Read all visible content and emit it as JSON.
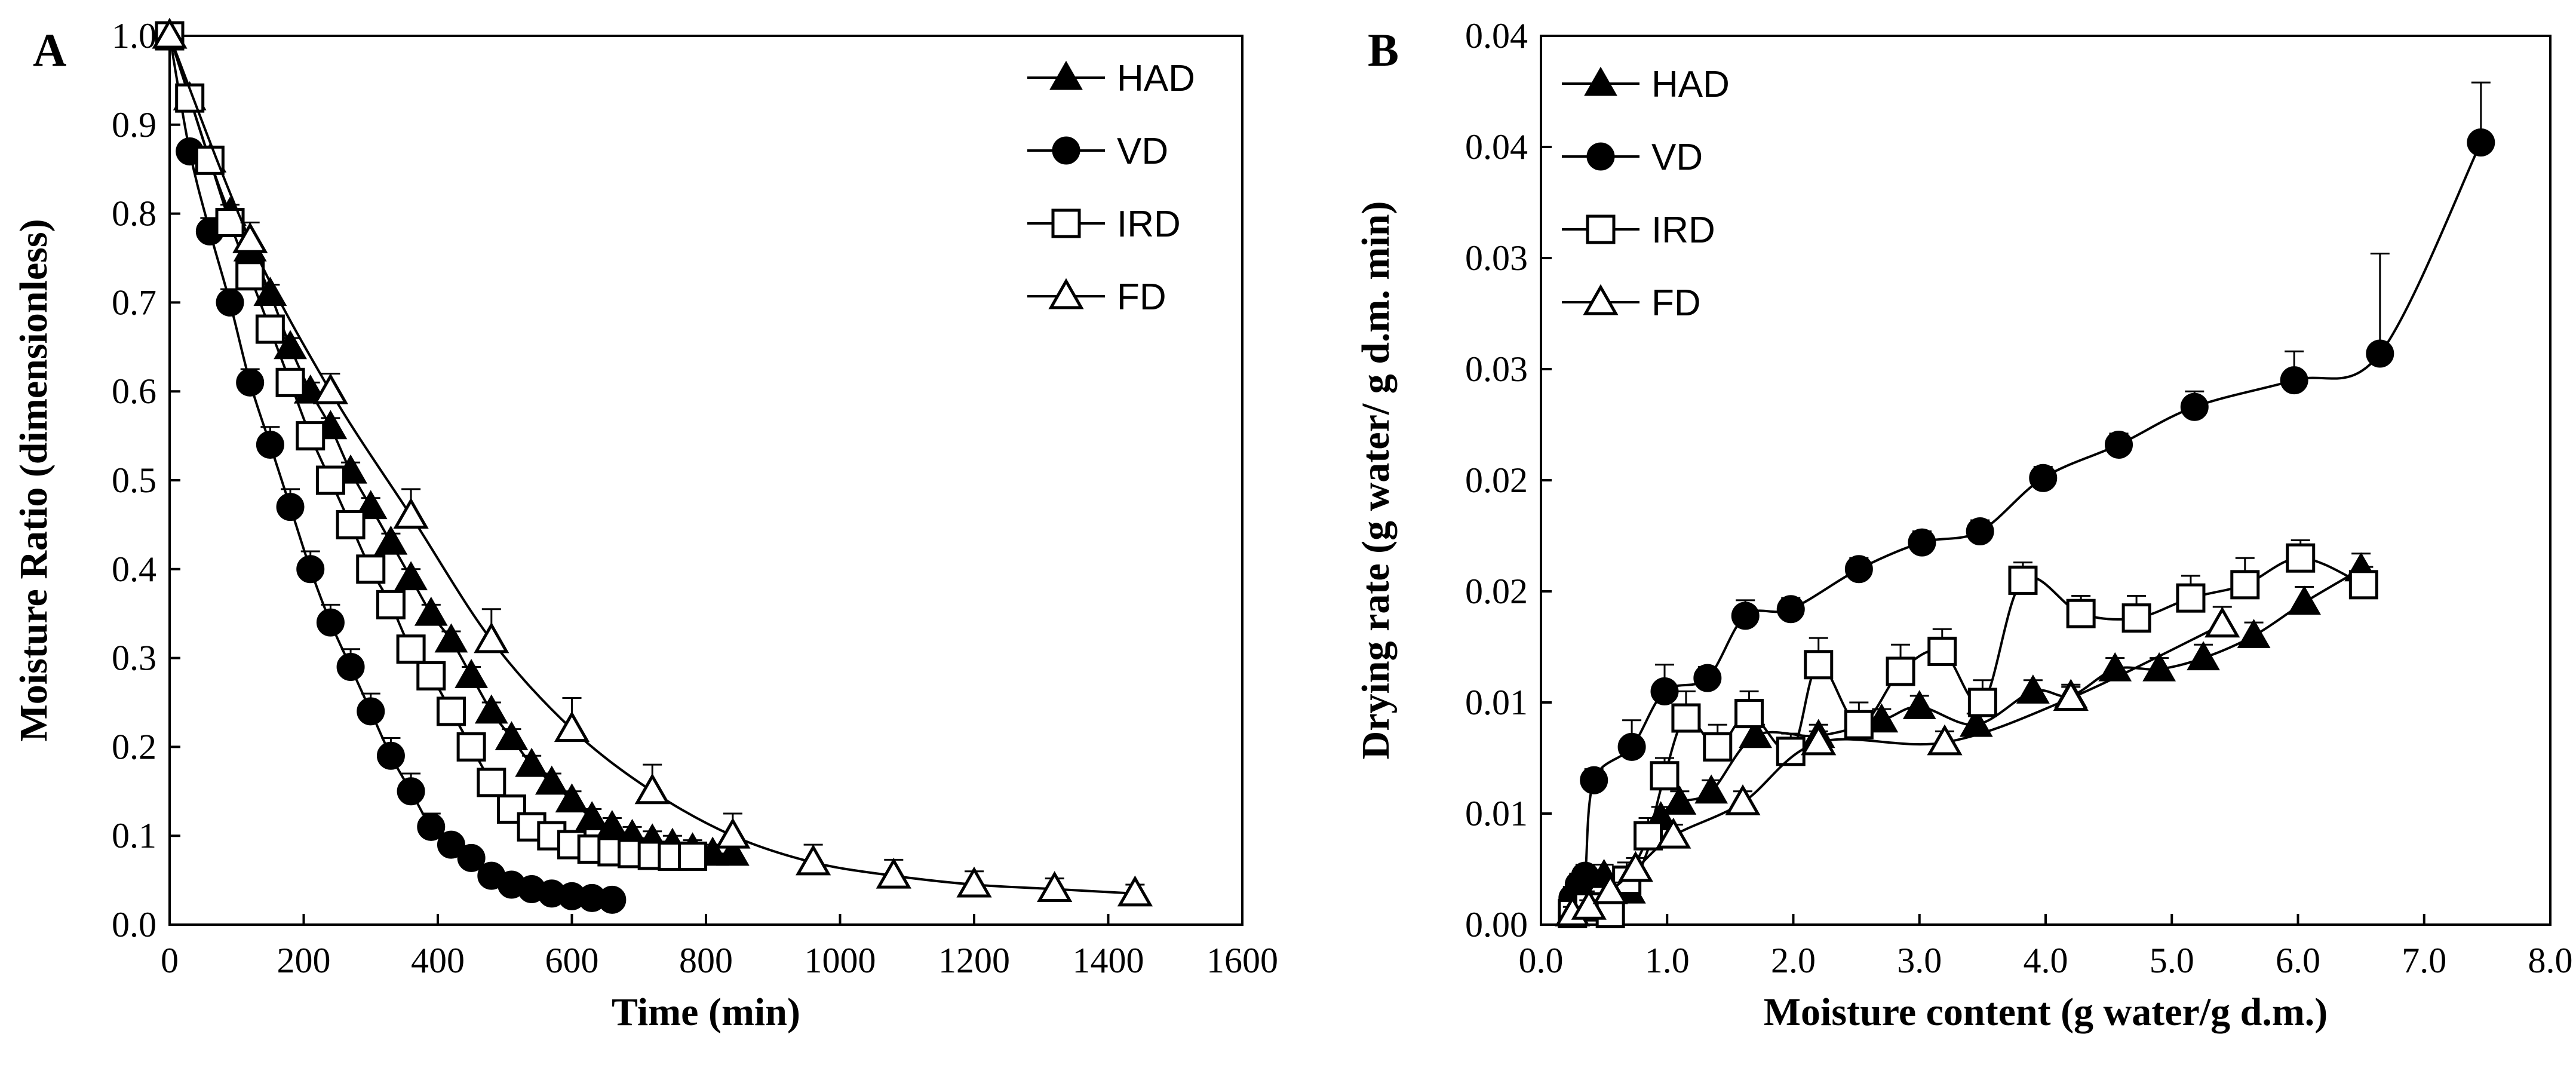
{
  "chart_data": [
    {
      "type": "line",
      "panel_label": "A",
      "xlabel": "Time (min)",
      "ylabel": "Moisture Ratio (dimensionless)",
      "xlim": [
        0,
        1600
      ],
      "ylim": [
        0,
        1.0
      ],
      "xticks": [
        "0",
        "200",
        "400",
        "600",
        "800",
        "1000",
        "1200",
        "1400",
        "1600"
      ],
      "yticks": [
        "0.0",
        "0.1",
        "0.2",
        "0.3",
        "0.4",
        "0.5",
        "0.6",
        "0.7",
        "0.8",
        "0.9",
        "1.0"
      ],
      "legend_position": "top-right",
      "series": [
        {
          "name": "HAD",
          "marker": "triangle-filled",
          "x": [
            0,
            30,
            60,
            90,
            120,
            150,
            180,
            210,
            240,
            270,
            300,
            330,
            360,
            390,
            420,
            450,
            480,
            510,
            540,
            570,
            600,
            630,
            660,
            690,
            720,
            750,
            780,
            810,
            840
          ],
          "y": [
            1.0,
            0.93,
            0.86,
            0.8,
            0.76,
            0.71,
            0.65,
            0.6,
            0.56,
            0.51,
            0.47,
            0.43,
            0.39,
            0.35,
            0.32,
            0.28,
            0.24,
            0.21,
            0.18,
            0.16,
            0.14,
            0.12,
            0.11,
            0.1,
            0.095,
            0.09,
            0.085,
            0.08,
            0.08
          ],
          "err": [
            0,
            0.005,
            0.01,
            0.01,
            0.01,
            0.01,
            0.01,
            0.01,
            0.01,
            0.01,
            0.01,
            0.01,
            0.01,
            0.01,
            0.01,
            0.01,
            0.01,
            0.01,
            0.01,
            0.01,
            0.01,
            0.01,
            0.01,
            0.01,
            0.01,
            0.01,
            0.01,
            0.01,
            0.01
          ]
        },
        {
          "name": "VD",
          "marker": "circle-filled",
          "x": [
            0,
            30,
            60,
            90,
            120,
            150,
            180,
            210,
            240,
            270,
            300,
            330,
            360,
            390,
            420,
            450,
            480,
            510,
            540,
            570,
            600,
            630,
            660
          ],
          "y": [
            1.0,
            0.87,
            0.78,
            0.7,
            0.61,
            0.54,
            0.47,
            0.4,
            0.34,
            0.29,
            0.24,
            0.19,
            0.15,
            0.11,
            0.09,
            0.075,
            0.055,
            0.045,
            0.04,
            0.035,
            0.032,
            0.03,
            0.028
          ],
          "err": [
            0,
            0.01,
            0.015,
            0.015,
            0.015,
            0.02,
            0.02,
            0.02,
            0.02,
            0.02,
            0.02,
            0.02,
            0.02,
            0.015,
            0.01,
            0.005,
            0.005,
            0.005,
            0.005,
            0.005,
            0.005,
            0.005,
            0.005
          ]
        },
        {
          "name": "IRD",
          "marker": "square-open",
          "x": [
            0,
            30,
            60,
            90,
            120,
            150,
            180,
            210,
            240,
            270,
            300,
            330,
            360,
            390,
            420,
            450,
            480,
            510,
            540,
            570,
            600,
            630,
            660,
            690,
            720,
            750,
            780
          ],
          "y": [
            1.0,
            0.93,
            0.86,
            0.79,
            0.73,
            0.67,
            0.61,
            0.55,
            0.5,
            0.45,
            0.4,
            0.36,
            0.31,
            0.28,
            0.24,
            0.2,
            0.16,
            0.13,
            0.11,
            0.1,
            0.09,
            0.085,
            0.082,
            0.08,
            0.078,
            0.077,
            0.077
          ],
          "err": [
            0,
            0.005,
            0.01,
            0.01,
            0.01,
            0.01,
            0.01,
            0.01,
            0.01,
            0.01,
            0.01,
            0.01,
            0.01,
            0.01,
            0.01,
            0.01,
            0.01,
            0.01,
            0.01,
            0.01,
            0.01,
            0.01,
            0.01,
            0.01,
            0.01,
            0.01,
            0.01
          ]
        },
        {
          "name": "FD",
          "marker": "triangle-open",
          "x": [
            0,
            120,
            240,
            360,
            480,
            600,
            720,
            840,
            960,
            1080,
            1200,
            1320,
            1440
          ],
          "y": [
            1.0,
            0.77,
            0.6,
            0.46,
            0.32,
            0.22,
            0.15,
            0.1,
            0.07,
            0.055,
            0.045,
            0.04,
            0.035
          ],
          "err": [
            0,
            0.02,
            0.02,
            0.03,
            0.035,
            0.035,
            0.03,
            0.025,
            0.02,
            0.018,
            0.015,
            0.012,
            0.01
          ]
        }
      ]
    },
    {
      "type": "line",
      "panel_label": "B",
      "xlabel": "Moisture content (g water/g d.m.)",
      "ylabel": "Drying rate (g water/ g d.m. min)",
      "xlim": [
        0,
        8
      ],
      "ylim": [
        0,
        0.04
      ],
      "xticks": [
        "0.0",
        "1.0",
        "2.0",
        "3.0",
        "4.0",
        "5.0",
        "6.0",
        "7.0",
        "8.0"
      ],
      "yticks": [
        "0.00",
        "0.01",
        "0.01",
        "0.02",
        "0.02",
        "0.03",
        "0.03",
        "0.04",
        "0.04"
      ],
      "legend_position": "top-left",
      "series": [
        {
          "name": "HAD",
          "marker": "triangle-filled",
          "x": [
            0.25,
            0.35,
            0.5,
            0.7,
            0.95,
            1.1,
            1.35,
            1.7,
            2.2,
            2.7,
            3.0,
            3.45,
            3.9,
            4.2,
            4.55,
            4.9,
            5.25,
            5.65,
            6.05,
            6.5
          ],
          "y": [
            0.0005,
            0.0012,
            0.0022,
            0.0015,
            0.0048,
            0.0055,
            0.006,
            0.0085,
            0.0085,
            0.0092,
            0.0098,
            0.009,
            0.0105,
            0.0103,
            0.0115,
            0.0115,
            0.012,
            0.013,
            0.0145,
            0.016
          ],
          "err": [
            0.0003,
            0.0003,
            0.0005,
            0.0004,
            0.0005,
            0.0005,
            0.0005,
            0.0005,
            0.0005,
            0.0005,
            0.0005,
            0.0005,
            0.0005,
            0.0005,
            0.0005,
            0.0005,
            0.0006,
            0.0006,
            0.0007,
            0.0007
          ]
        },
        {
          "name": "VD",
          "marker": "circle-filled",
          "x": [
            0.25,
            0.3,
            0.35,
            0.42,
            0.72,
            0.98,
            1.32,
            1.62,
            1.98,
            2.52,
            3.02,
            3.48,
            3.98,
            4.58,
            5.18,
            5.97,
            6.65,
            7.45
          ],
          "y": [
            0.0012,
            0.0018,
            0.0022,
            0.0065,
            0.008,
            0.0105,
            0.0111,
            0.0139,
            0.0142,
            0.016,
            0.0172,
            0.0177,
            0.0201,
            0.0216,
            0.0233,
            0.0245,
            0.0257,
            0.0352
          ],
          "err": [
            0.0005,
            0.0005,
            0.0005,
            0.0005,
            0.0012,
            0.0012,
            0.0005,
            0.0007,
            0.0005,
            0.0005,
            0.0005,
            0.0005,
            0.0005,
            0.0005,
            0.0007,
            0.0013,
            0.0045,
            0.0027
          ]
        },
        {
          "name": "IRD",
          "marker": "square-open",
          "x": [
            0.25,
            0.38,
            0.55,
            0.68,
            0.85,
            0.98,
            1.15,
            1.4,
            1.65,
            1.98,
            2.2,
            2.52,
            2.85,
            3.18,
            3.5,
            3.82,
            4.28,
            4.72,
            5.15,
            5.58,
            6.02,
            6.52
          ],
          "y": [
            0.0005,
            0.0008,
            0.0005,
            0.002,
            0.004,
            0.0067,
            0.0093,
            0.008,
            0.0095,
            0.0078,
            0.0117,
            0.009,
            0.0114,
            0.0123,
            0.01,
            0.0155,
            0.014,
            0.0138,
            0.0147,
            0.0153,
            0.0165,
            0.0153
          ],
          "err": [
            0.0003,
            0.0003,
            0.0003,
            0.0008,
            0.0008,
            0.0008,
            0.0012,
            0.001,
            0.001,
            0.0008,
            0.0012,
            0.001,
            0.0012,
            0.001,
            0.001,
            0.0008,
            0.0008,
            0.001,
            0.001,
            0.0012,
            0.0008,
            0.0008
          ]
        },
        {
          "name": "FD",
          "marker": "triangle-open",
          "x": [
            0.25,
            0.38,
            0.55,
            0.75,
            1.05,
            1.6,
            2.2,
            3.2,
            4.2,
            5.4
          ],
          "y": [
            0.0005,
            0.0008,
            0.0015,
            0.0025,
            0.004,
            0.0055,
            0.0082,
            0.0082,
            0.0102,
            0.0135
          ],
          "err": [
            0.0003,
            0.0003,
            0.0004,
            0.0005,
            0.0005,
            0.0005,
            0.0005,
            0.0005,
            0.0005,
            0.0008
          ]
        }
      ]
    }
  ]
}
